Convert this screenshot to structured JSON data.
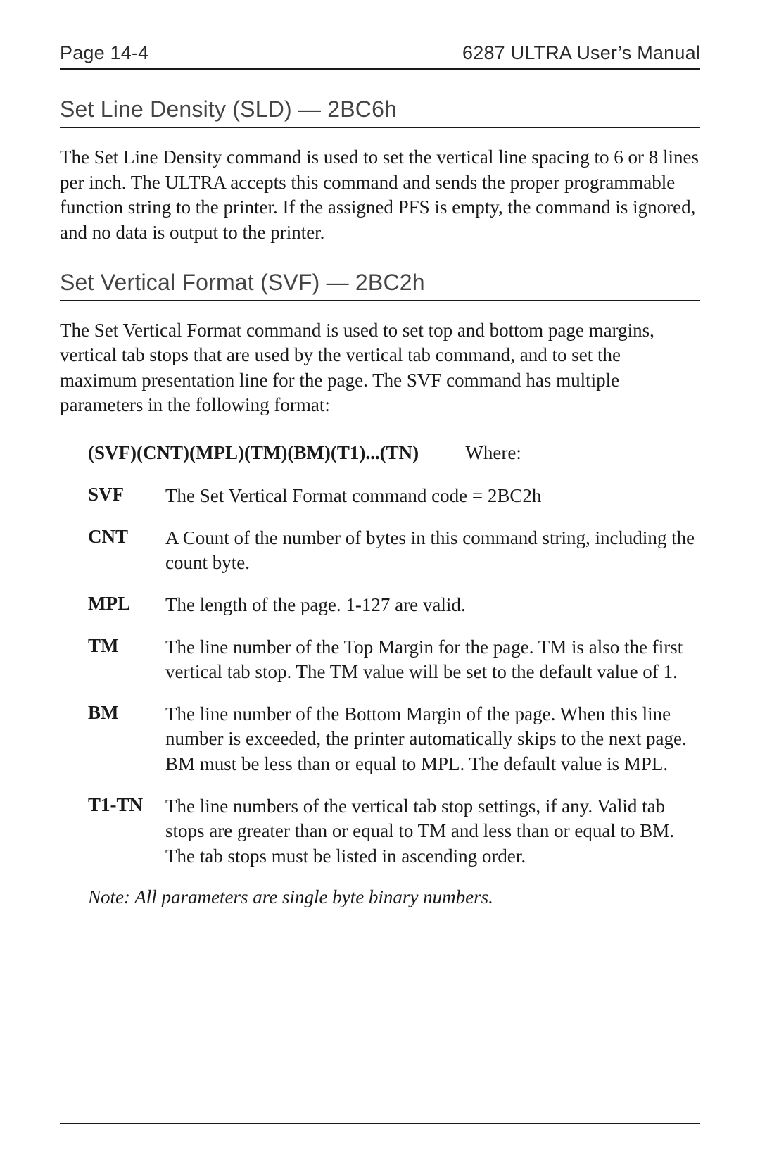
{
  "header": {
    "left": "Page 14-4",
    "right": "6287 ULTRA User’s Manual"
  },
  "section1": {
    "title": "Set Line Density (SLD) — 2BC6h",
    "para": "The Set Line Density command is used to set the vertical line spacing to 6 or 8 lines per inch. The ULTRA accepts this command and sends the proper programmable function string to the printer. If the assigned PFS is empty, the command is ignored, and no data is output to the printer."
  },
  "section2": {
    "title": "Set Vertical Format (SVF) — 2BC2h",
    "para": "The Set Vertical Format command is used to set top and bottom page margins, vertical tab stops that are used by the vertical tab command, and to set the maximum presentation line for the page. The SVF command has multiple parameters in the following format:",
    "format_syntax": "(SVF)(CNT)(MPL)(TM)(BM)(T1)...(TN)",
    "format_where": "Where:",
    "params": [
      {
        "term": "SVF",
        "def": "The Set Vertical Format command code = 2BC2h"
      },
      {
        "term": "CNT",
        "def": "A Count of the number of bytes in this command string, including the count byte."
      },
      {
        "term": "MPL",
        "def": "The length of the page. 1-127 are valid."
      },
      {
        "term": "TM",
        "def": "The line number of the Top Margin for the page. TM is also the first vertical tab stop. The TM value will be set to the default value of 1."
      },
      {
        "term": "BM",
        "def": "The line number of the Bottom Margin of the page. When this line number is exceeded, the printer automatically skips to the next page. BM must be less than or equal to MPL. The default value is MPL."
      },
      {
        "term": "T1-TN",
        "def": "The line numbers of the vertical tab stop settings, if any. Valid tab stops are greater than or equal to TM and less than or equal to BM. The tab stops must be listed in ascending order."
      }
    ],
    "note": "Note: All parameters are single byte binary numbers."
  }
}
